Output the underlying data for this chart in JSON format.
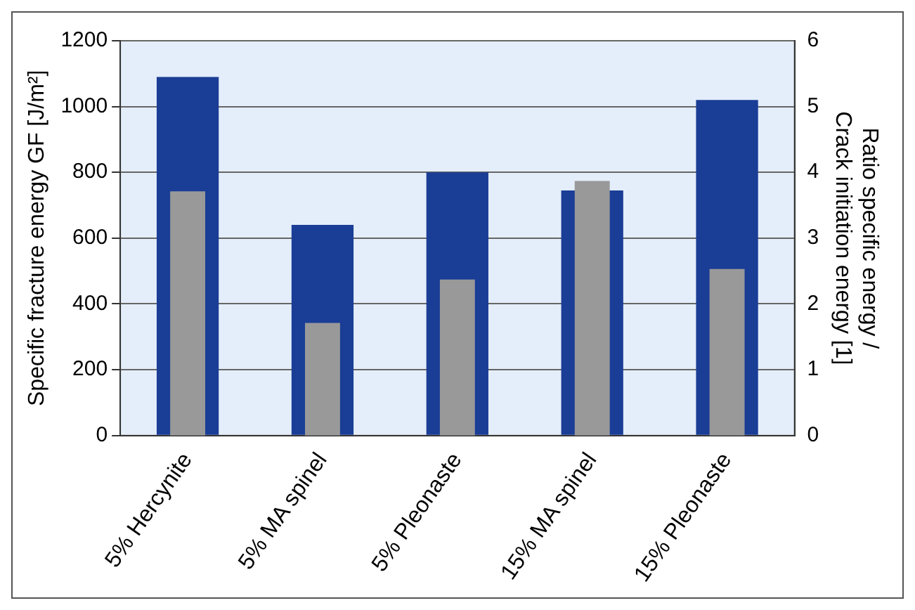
{
  "chart_data": {
    "type": "bar",
    "ylabel": "Specific fracture energy GF [J/m²]",
    "y2label": "Ratio specific energy /\nCrack initiation energy [1]",
    "categories": [
      "5% Hercynite",
      "5% MA spinel",
      "5% Pleonaste",
      "15% MA spinel",
      "15% Pleonaste"
    ],
    "series": [
      {
        "color": "#1a3d96",
        "values": [
          1090,
          640,
          800,
          745,
          1020
        ]
      },
      {
        "color": "#999999",
        "values": [
          3.71,
          1.71,
          2.37,
          3.87,
          2.53
        ],
        "axis": "y2"
      }
    ],
    "ylim": [
      0,
      1200
    ],
    "yticks": [
      0,
      200,
      400,
      600,
      800,
      1000,
      1200
    ],
    "y2lim": [
      0,
      6
    ],
    "y2ticks": [
      0,
      1,
      2,
      3,
      4,
      5,
      6
    ],
    "grid": "y",
    "legend": false
  }
}
